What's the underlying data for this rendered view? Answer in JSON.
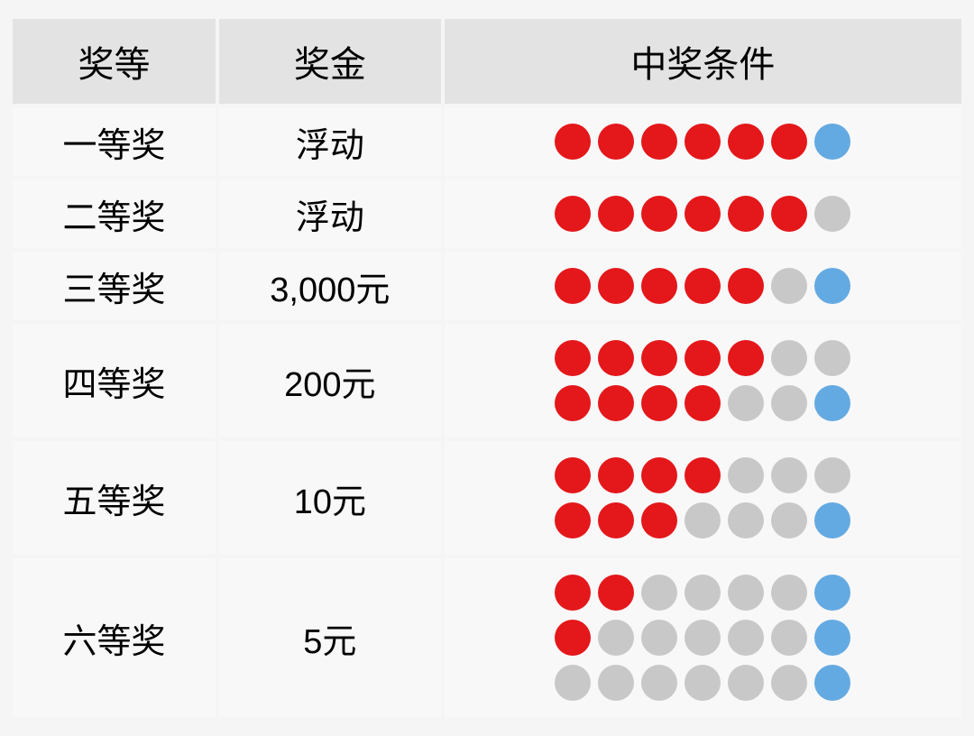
{
  "colors": {
    "red": "#e4171b",
    "blue": "#64aae2",
    "gray": "#c8c8c8",
    "header_bg": "#e3e3e3",
    "row_bg": "#f8f8f8",
    "page_bg": "#f5f5f5",
    "text": "#000000"
  },
  "table": {
    "headers": {
      "level": "奖等",
      "amount": "奖金",
      "condition": "中奖条件"
    },
    "rows": [
      {
        "level": "一等奖",
        "amount": "浮动",
        "conditions": [
          [
            "red",
            "red",
            "red",
            "red",
            "red",
            "red",
            "blue"
          ]
        ]
      },
      {
        "level": "二等奖",
        "amount": "浮动",
        "conditions": [
          [
            "red",
            "red",
            "red",
            "red",
            "red",
            "red",
            "gray"
          ]
        ]
      },
      {
        "level": "三等奖",
        "amount": "3,000元",
        "conditions": [
          [
            "red",
            "red",
            "red",
            "red",
            "red",
            "gray",
            "blue"
          ]
        ]
      },
      {
        "level": "四等奖",
        "amount": "200元",
        "conditions": [
          [
            "red",
            "red",
            "red",
            "red",
            "red",
            "gray",
            "gray"
          ],
          [
            "red",
            "red",
            "red",
            "red",
            "gray",
            "gray",
            "blue"
          ]
        ]
      },
      {
        "level": "五等奖",
        "amount": "10元",
        "conditions": [
          [
            "red",
            "red",
            "red",
            "red",
            "gray",
            "gray",
            "gray"
          ],
          [
            "red",
            "red",
            "red",
            "gray",
            "gray",
            "gray",
            "blue"
          ]
        ]
      },
      {
        "level": "六等奖",
        "amount": "5元",
        "conditions": [
          [
            "red",
            "red",
            "gray",
            "gray",
            "gray",
            "gray",
            "blue"
          ],
          [
            "red",
            "gray",
            "gray",
            "gray",
            "gray",
            "gray",
            "blue"
          ],
          [
            "gray",
            "gray",
            "gray",
            "gray",
            "gray",
            "gray",
            "blue"
          ]
        ]
      }
    ]
  },
  "typography": {
    "header_fontsize": 40,
    "cell_fontsize": 38
  },
  "layout": {
    "ball_diameter": 40,
    "ball_gap": 8,
    "row_gap": 10
  }
}
